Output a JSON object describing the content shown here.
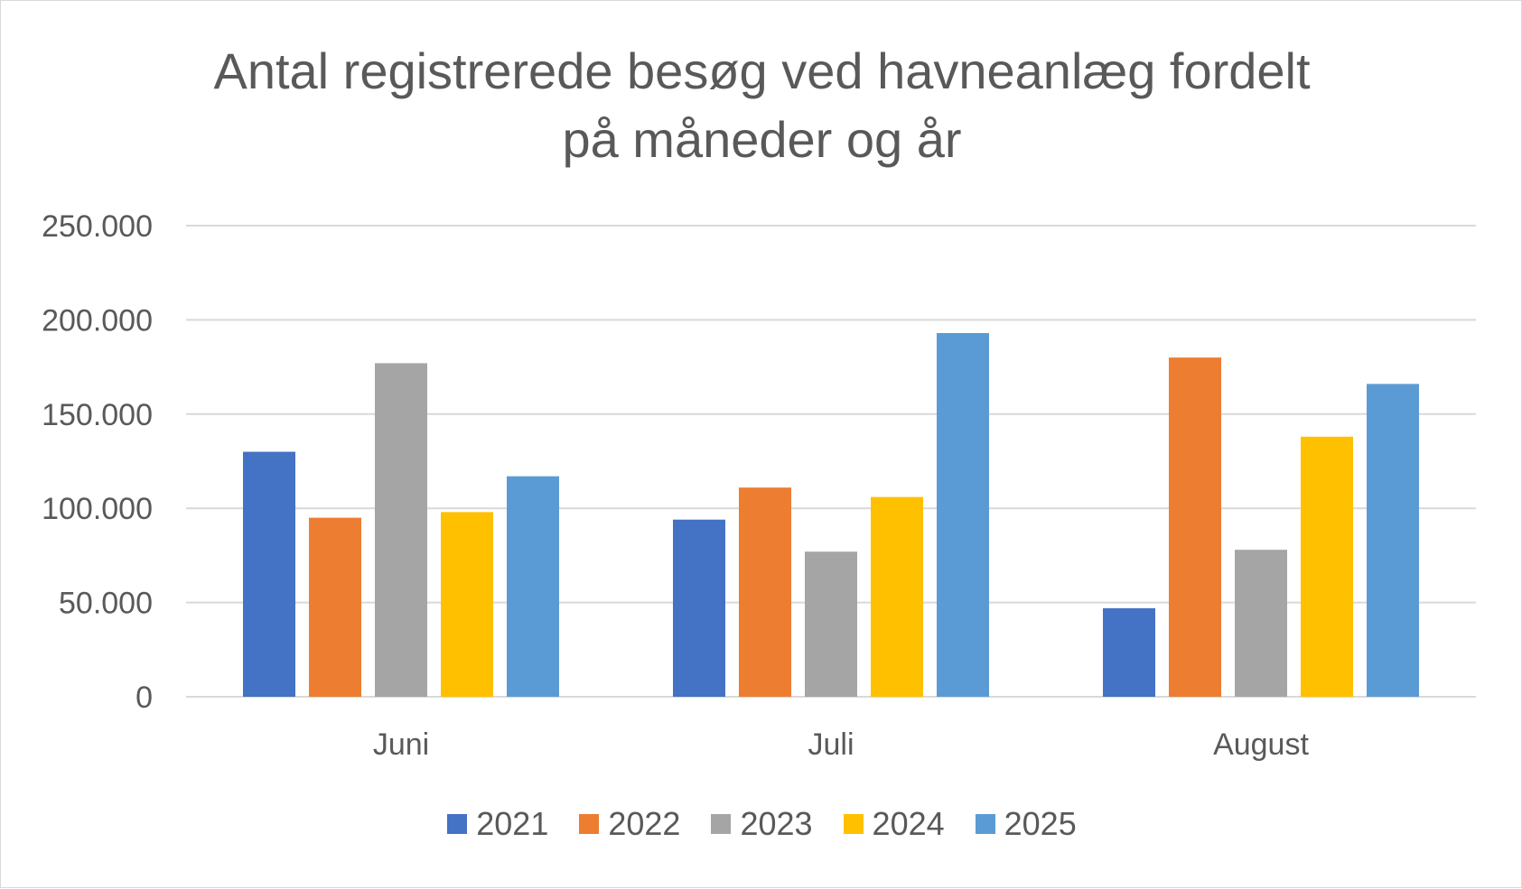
{
  "chart_data": {
    "type": "bar",
    "title_lines": [
      "Antal registrerede besøg ved havneanlæg fordelt",
      "på måneder og år"
    ],
    "categories": [
      "Juni",
      "Juli",
      "August"
    ],
    "series": [
      {
        "name": "2021",
        "color": "#4472C4",
        "values": [
          130000,
          94000,
          47000
        ]
      },
      {
        "name": "2022",
        "color": "#ED7D31",
        "values": [
          95000,
          111000,
          180000
        ]
      },
      {
        "name": "2023",
        "color": "#A5A5A5",
        "values": [
          177000,
          77000,
          78000
        ]
      },
      {
        "name": "2024",
        "color": "#FFC000",
        "values": [
          98000,
          106000,
          138000
        ]
      },
      {
        "name": "2025",
        "color": "#5B9BD5",
        "values": [
          117000,
          193000,
          166000
        ]
      }
    ],
    "y_ticks": [
      0,
      50000,
      100000,
      150000,
      200000,
      250000
    ],
    "y_tick_labels": [
      "0",
      "50.000",
      "100.000",
      "150.000",
      "200.000",
      "250.000"
    ],
    "ylim": [
      0,
      250000
    ],
    "xlabel": "",
    "ylabel": "",
    "grid": true,
    "legend_position": "bottom"
  }
}
